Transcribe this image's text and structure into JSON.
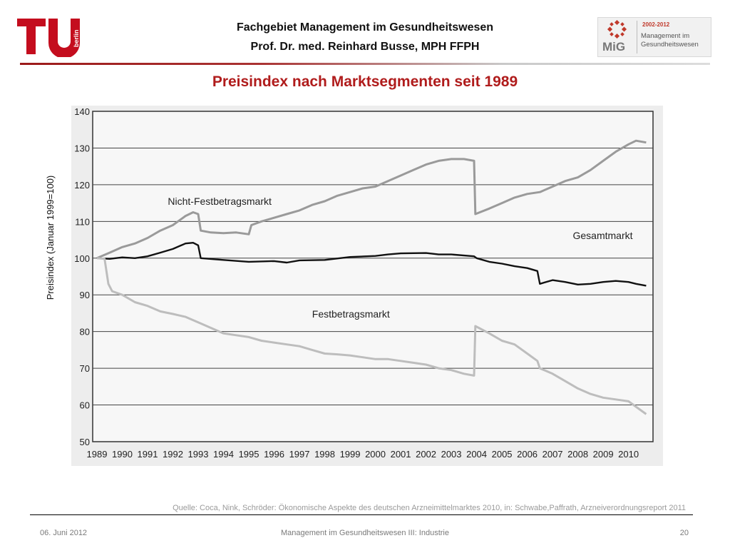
{
  "header": {
    "line1": "Fachgebiet Management im Gesundheitswesen",
    "line2": "Prof. Dr. med. Reinhard Busse, MPH FFPH"
  },
  "logos": {
    "tu_text": "berlin",
    "mig_years": "2002-2012",
    "mig_name": "Management im Gesundheitswesen",
    "mig_text": "MiG"
  },
  "colors": {
    "title": "#b01c1c",
    "tu_red": "#c40d1e",
    "gesamtmarkt": "#111111",
    "nicht_festbetragsmarkt": "#9a9a9a",
    "festbetragsmarkt": "#bdbdbd"
  },
  "slide_title": "Preisindex nach Marktsegmenten seit 1989",
  "y_axis_label": "Preisindex (Januar 1999=100)",
  "chart_data": {
    "type": "line",
    "x_tick_labels": [
      "1989",
      "1990",
      "1991",
      "1992",
      "1993",
      "1994",
      "1995",
      "1996",
      "1997",
      "1998",
      "1999",
      "2000",
      "2001",
      "2002",
      "2003",
      "2004",
      "2005",
      "2006",
      "2007",
      "2008",
      "2009",
      "2010"
    ],
    "y_tick_labels": [
      "50",
      "60",
      "70",
      "80",
      "90",
      "100",
      "110",
      "120",
      "130",
      "140"
    ],
    "ylim": [
      50,
      140
    ],
    "grid": "horizontal",
    "series": [
      {
        "name": "Nicht-Festbetragsmarkt",
        "color": "#9a9a9a",
        "points": [
          [
            1989,
            100
          ],
          [
            1989.5,
            101.5
          ],
          [
            1990,
            103
          ],
          [
            1990.5,
            104
          ],
          [
            1991,
            105.5
          ],
          [
            1991.5,
            107.5
          ],
          [
            1992,
            109
          ],
          [
            1992.5,
            111.5
          ],
          [
            1992.8,
            112.5
          ],
          [
            1993,
            112
          ],
          [
            1993.1,
            107.5
          ],
          [
            1993.5,
            107
          ],
          [
            1994,
            106.8
          ],
          [
            1994.5,
            107
          ],
          [
            1995,
            106.5
          ],
          [
            1995.1,
            109
          ],
          [
            1995.5,
            110
          ],
          [
            1996,
            111
          ],
          [
            1996.5,
            112
          ],
          [
            1997,
            113
          ],
          [
            1997.5,
            114.5
          ],
          [
            1998,
            115.5
          ],
          [
            1998.5,
            117
          ],
          [
            1999,
            118
          ],
          [
            1999.5,
            119
          ],
          [
            2000,
            119.5
          ],
          [
            2000.5,
            121
          ],
          [
            2001,
            122.5
          ],
          [
            2001.5,
            124
          ],
          [
            2002,
            125.5
          ],
          [
            2002.5,
            126.5
          ],
          [
            2003,
            127
          ],
          [
            2003.5,
            127
          ],
          [
            2003.9,
            126.5
          ],
          [
            2003.95,
            112
          ],
          [
            2004.5,
            113.5
          ],
          [
            2005,
            115
          ],
          [
            2005.5,
            116.5
          ],
          [
            2006,
            117.5
          ],
          [
            2006.5,
            118
          ],
          [
            2007,
            119.5
          ],
          [
            2007.5,
            121
          ],
          [
            2008,
            122
          ],
          [
            2008.5,
            124
          ],
          [
            2009,
            126.5
          ],
          [
            2009.5,
            129
          ],
          [
            2010,
            131
          ],
          [
            2010.3,
            132
          ],
          [
            2010.7,
            131.5
          ]
        ],
        "label_at": [
          1991.8,
          114.5
        ]
      },
      {
        "name": "Gesamtmarkt",
        "color": "#111111",
        "points": [
          [
            1989,
            100
          ],
          [
            1989.5,
            99.8
          ],
          [
            1990,
            100.2
          ],
          [
            1990.5,
            100
          ],
          [
            1991,
            100.5
          ],
          [
            1991.5,
            101.5
          ],
          [
            1992,
            102.5
          ],
          [
            1992.5,
            104
          ],
          [
            1992.8,
            104.2
          ],
          [
            1993,
            103.5
          ],
          [
            1993.1,
            100
          ],
          [
            1994,
            99.5
          ],
          [
            1995,
            99
          ],
          [
            1996,
            99.2
          ],
          [
            1996.5,
            98.8
          ],
          [
            1997,
            99.4
          ],
          [
            1998,
            99.5
          ],
          [
            1999,
            100.3
          ],
          [
            2000,
            100.6
          ],
          [
            2000.5,
            101
          ],
          [
            2001,
            101.3
          ],
          [
            2002,
            101.4
          ],
          [
            2002.5,
            101
          ],
          [
            2003,
            101
          ],
          [
            2003.9,
            100.5
          ],
          [
            2004,
            100
          ],
          [
            2004.5,
            99
          ],
          [
            2005,
            98.5
          ],
          [
            2005.5,
            97.8
          ],
          [
            2006,
            97.3
          ],
          [
            2006.4,
            96.5
          ],
          [
            2006.5,
            93
          ],
          [
            2007,
            94
          ],
          [
            2007.5,
            93.5
          ],
          [
            2008,
            92.8
          ],
          [
            2008.5,
            93
          ],
          [
            2009,
            93.5
          ],
          [
            2009.5,
            93.8
          ],
          [
            2010,
            93.5
          ],
          [
            2010.3,
            93
          ],
          [
            2010.7,
            92.5
          ]
        ],
        "label_at": [
          2007.8,
          105.2
        ]
      },
      {
        "name": "Festbetragsmarkt",
        "color": "#bdbdbd",
        "points": [
          [
            1989,
            100
          ],
          [
            1989.3,
            99.8
          ],
          [
            1989.45,
            93
          ],
          [
            1989.6,
            91
          ],
          [
            1990,
            90
          ],
          [
            1990.5,
            88
          ],
          [
            1991,
            87
          ],
          [
            1991.5,
            85.5
          ],
          [
            1992,
            84.8
          ],
          [
            1992.5,
            84
          ],
          [
            1993,
            82.5
          ],
          [
            1993.5,
            81
          ],
          [
            1994,
            79.5
          ],
          [
            1994.5,
            79
          ],
          [
            1995,
            78.5
          ],
          [
            1995.5,
            77.5
          ],
          [
            1996,
            77
          ],
          [
            1996.5,
            76.5
          ],
          [
            1997,
            76
          ],
          [
            1997.5,
            75
          ],
          [
            1998,
            74
          ],
          [
            1998.5,
            73.8
          ],
          [
            1999,
            73.5
          ],
          [
            1999.5,
            73
          ],
          [
            2000,
            72.5
          ],
          [
            2000.5,
            72.5
          ],
          [
            2001,
            72
          ],
          [
            2001.5,
            71.5
          ],
          [
            2002,
            71
          ],
          [
            2002.5,
            70
          ],
          [
            2003,
            69.5
          ],
          [
            2003.5,
            68.5
          ],
          [
            2003.9,
            68
          ],
          [
            2003.95,
            81.5
          ],
          [
            2004.5,
            79.5
          ],
          [
            2005,
            77.5
          ],
          [
            2005.5,
            76.5
          ],
          [
            2006,
            74
          ],
          [
            2006.4,
            72
          ],
          [
            2006.5,
            70
          ],
          [
            2007,
            68.5
          ],
          [
            2007.5,
            66.5
          ],
          [
            2008,
            64.5
          ],
          [
            2008.5,
            63
          ],
          [
            2009,
            62
          ],
          [
            2009.5,
            61.5
          ],
          [
            2010,
            61
          ],
          [
            2010.3,
            59.5
          ],
          [
            2010.7,
            57.5
          ]
        ],
        "label_at": [
          1997.5,
          83.8
        ]
      }
    ]
  },
  "source": "Quelle: Coca, Nink, Schröder: Ökonomische Aspekte des deutschen Arzneimittelmarktes 2010, in: Schwabe,Paffrath, Arzneiverordnungsreport 2011",
  "footer": {
    "date": "06. Juni 2012",
    "center": "Management im Gesundheitswesen III: Industrie",
    "page": "20"
  }
}
